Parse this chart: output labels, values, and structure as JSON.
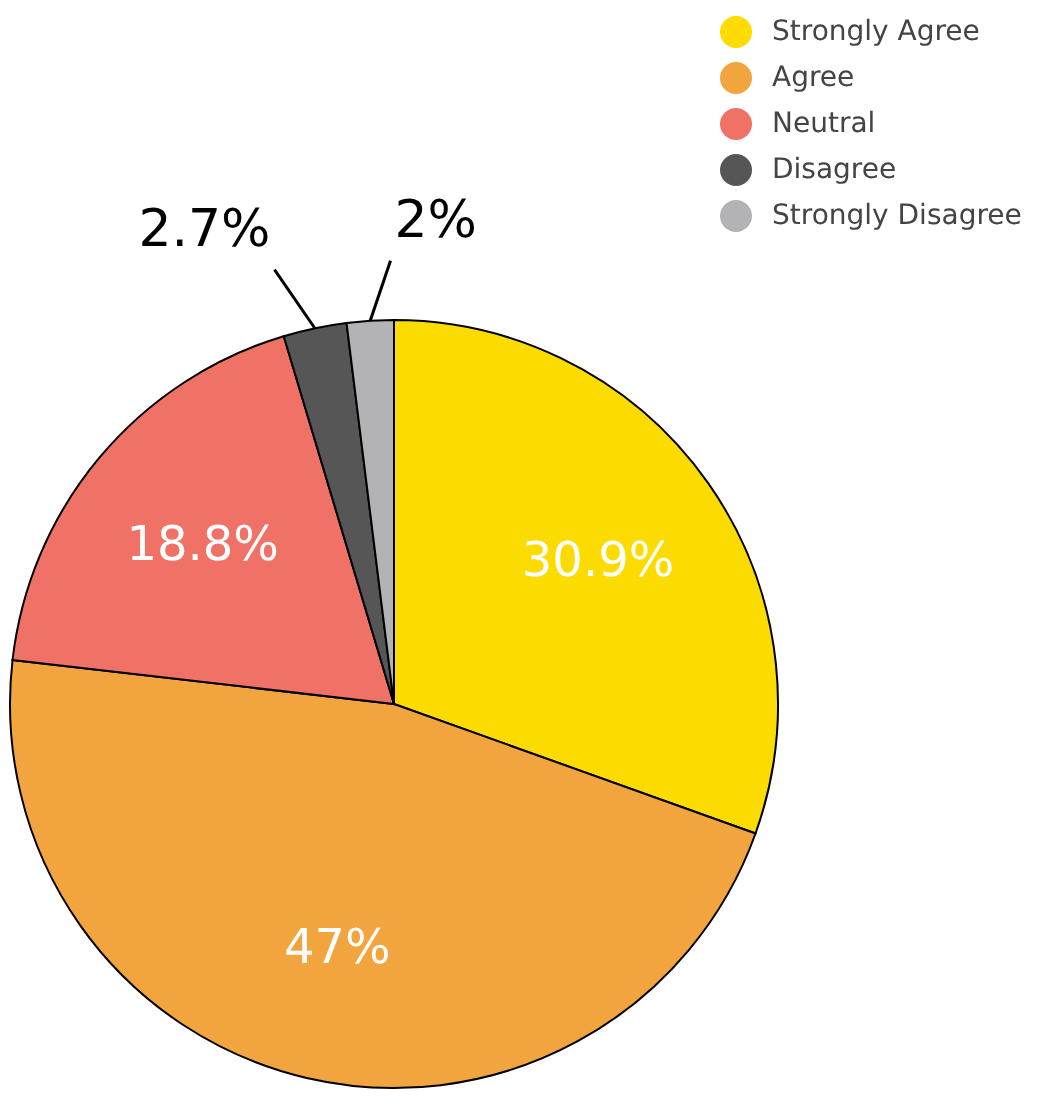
{
  "chart_data": {
    "type": "pie",
    "categories": [
      "Strongly Agree",
      "Agree",
      "Neutral",
      "Disagree",
      "Strongly Disagree"
    ],
    "values": [
      30.9,
      47,
      18.8,
      2.7,
      2
    ],
    "value_labels": [
      "30.9%",
      "47%",
      "18.8%",
      "2.7%",
      "2%"
    ],
    "colors": [
      "#fcdc00",
      "#f2a43f",
      "#f07266",
      "#565656",
      "#b3b3b6"
    ],
    "legend": "top right"
  }
}
